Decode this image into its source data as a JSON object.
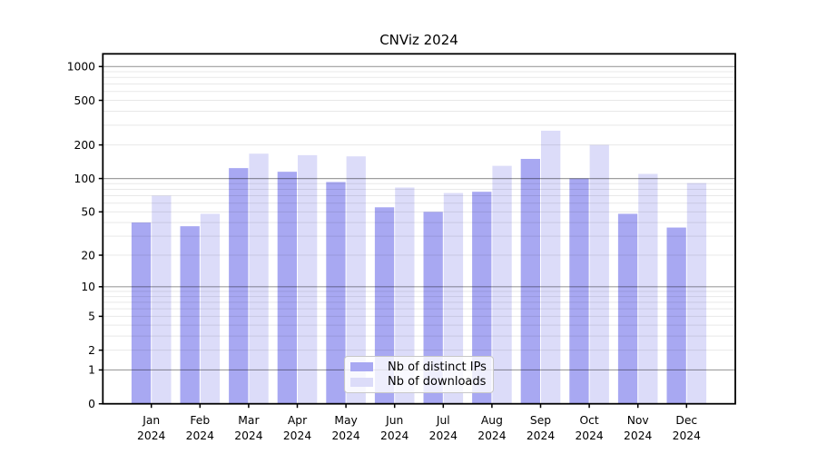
{
  "chart_data": {
    "type": "bar",
    "title": "CNViz 2024",
    "categories": [
      "Jan",
      "Feb",
      "Mar",
      "Apr",
      "May",
      "Jun",
      "Jul",
      "Aug",
      "Sep",
      "Oct",
      "Nov",
      "Dec"
    ],
    "year_label": "2024",
    "series": [
      {
        "name": "Nb of distinct IPs",
        "color": "#a8a8f2",
        "values": [
          40,
          37,
          124,
          115,
          93,
          55,
          50,
          76,
          150,
          100,
          48,
          36
        ]
      },
      {
        "name": "Nb of downloads",
        "color": "#dcdcf9",
        "values": [
          70,
          48,
          167,
          162,
          158,
          83,
          74,
          130,
          268,
          200,
          110,
          91
        ]
      }
    ],
    "yscale": "log1p",
    "ylim": [
      0,
      1300
    ],
    "y_ticks": [
      0,
      1,
      2,
      5,
      10,
      20,
      50,
      100,
      200,
      500,
      1000
    ],
    "y_major_gridlines": [
      1,
      10,
      100,
      1000
    ],
    "y_minor_gridlines": [
      2,
      3,
      4,
      5,
      6,
      7,
      8,
      9,
      20,
      30,
      40,
      50,
      60,
      70,
      80,
      90,
      200,
      300,
      400,
      500,
      600,
      700,
      800,
      900
    ],
    "grid": true,
    "legend_position": "lower center",
    "colors": {
      "major_grid": "rgba(0,0,0,0.38)",
      "minor_grid": "rgba(0,0,0,0.09)",
      "spine": "#000000",
      "text": "#000000"
    }
  }
}
